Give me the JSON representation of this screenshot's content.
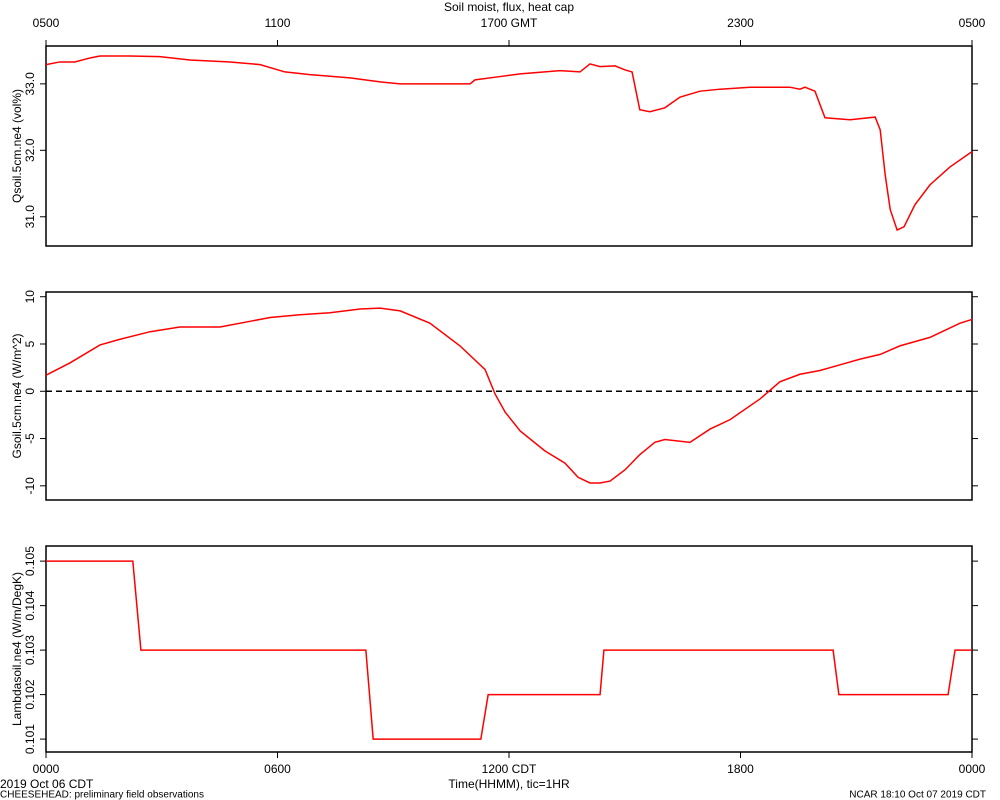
{
  "title": "Soil moist, flux, heat cap",
  "xlabel": "Time(HHMM), tic=1HR",
  "date_label": "2019 Oct 06 CDT",
  "project_label": "CHEESEHEAD: preliminary field observations",
  "credit_label": "NCAR 18:10 Oct 07 2019 CDT",
  "chart_data": [
    {
      "type": "line",
      "ylabel": "Qsoil.5cm.ne4 (vol%)",
      "color": "#ff0000",
      "x": [
        0,
        0.36,
        0.75,
        1.14,
        1.4,
        1.79,
        2.18,
        2.95,
        3.73,
        4.77,
        5.55,
        6.19,
        6.84,
        7.88,
        8.66,
        9.18,
        9.95,
        10.99,
        11.12,
        11.77,
        12.29,
        12.93,
        13.32,
        13.84,
        14.1,
        14.36,
        14.75,
        15.01,
        15.19,
        15.39,
        15.65,
        16.04,
        16.43,
        16.95,
        17.47,
        18.25,
        19.28,
        19.54,
        19.67,
        19.93,
        20.19,
        20.84,
        21.49,
        21.62,
        21.75,
        21.88,
        22.06,
        22.24,
        22.52,
        22.91,
        23.43,
        24
      ],
      "values": [
        33.29,
        33.33,
        33.33,
        33.39,
        33.42,
        33.42,
        33.42,
        33.41,
        33.36,
        33.33,
        33.29,
        33.18,
        33.14,
        33.09,
        33.03,
        33.0,
        33.0,
        33.0,
        33.06,
        33.11,
        33.15,
        33.18,
        33.2,
        33.18,
        33.3,
        33.26,
        33.27,
        33.21,
        33.18,
        32.61,
        32.58,
        32.64,
        32.8,
        32.89,
        32.92,
        32.95,
        32.95,
        32.92,
        32.95,
        32.89,
        32.49,
        32.46,
        32.5,
        32.31,
        31.63,
        31.11,
        30.8,
        30.85,
        31.18,
        31.48,
        31.75,
        31.98
      ],
      "xlim": [
        0,
        24
      ],
      "x2ticks": [
        {
          "value": 0,
          "label": "0500"
        },
        {
          "value": 6,
          "label": "1100"
        },
        {
          "value": 12,
          "label": "1700 GMT"
        },
        {
          "value": 18,
          "label": "2300"
        },
        {
          "value": 24,
          "label": "0500"
        }
      ],
      "ylim": [
        30.56,
        33.57
      ],
      "yticks": [
        {
          "value": 31,
          "label": "31.0"
        },
        {
          "value": 32,
          "label": "32.0"
        },
        {
          "value": 33,
          "label": "33.0"
        }
      ]
    },
    {
      "type": "line",
      "ylabel": "Gsoil.5cm.ne4 (W/m^2)",
      "color": "#ff0000",
      "x": [
        0,
        0.62,
        1.4,
        1.92,
        2.7,
        3.47,
        4.51,
        5.29,
        5.81,
        6.58,
        7.36,
        8.14,
        8.66,
        9.18,
        9.95,
        10.73,
        11.38,
        11.64,
        11.9,
        12.29,
        12.93,
        13.45,
        13.79,
        14.1,
        14.36,
        14.62,
        15.01,
        15.39,
        15.78,
        16.04,
        16.69,
        17.21,
        17.73,
        18.51,
        19.02,
        19.54,
        20.06,
        20.58,
        21.1,
        21.62,
        22.13,
        22.91,
        23.69,
        24
      ],
      "values": [
        1.7,
        3.0,
        4.9,
        5.5,
        6.3,
        6.8,
        6.8,
        7.4,
        7.8,
        8.1,
        8.3,
        8.7,
        8.8,
        8.5,
        7.2,
        4.8,
        2.3,
        -0.3,
        -2.2,
        -4.2,
        -6.3,
        -7.6,
        -9.1,
        -9.7,
        -9.7,
        -9.5,
        -8.3,
        -6.7,
        -5.4,
        -5.1,
        -5.4,
        -4.0,
        -3.0,
        -0.8,
        1.0,
        1.8,
        2.2,
        2.8,
        3.4,
        3.9,
        4.8,
        5.7,
        7.2,
        7.6
      ],
      "xlim": [
        0,
        24
      ],
      "ylim": [
        -11.5,
        10.5
      ],
      "yticks": [
        -10,
        -5,
        0,
        5,
        10
      ],
      "reference_line": 0
    },
    {
      "type": "line",
      "ylabel": "Lambdasoil.ne4 (W/m/DegK)",
      "color": "#ff0000",
      "x": [
        0,
        2.25,
        2.46,
        8.29,
        8.48,
        11.27,
        11.46,
        14.36,
        14.46,
        20.4,
        20.55,
        23.38,
        23.56,
        24
      ],
      "values": [
        0.105,
        0.105,
        0.103,
        0.103,
        0.101,
        0.101,
        0.102,
        0.102,
        0.103,
        0.103,
        0.102,
        0.102,
        0.103,
        0.103
      ],
      "xlim": [
        0,
        24
      ],
      "xticks": [
        {
          "value": 0,
          "label": "0000"
        },
        {
          "value": 6,
          "label": "0600"
        },
        {
          "value": 12,
          "label": "1200 CDT"
        },
        {
          "value": 18,
          "label": "1800"
        },
        {
          "value": 24,
          "label": "0000"
        }
      ],
      "ylim": [
        0.10071,
        0.10534
      ],
      "yticks": [
        0.101,
        0.102,
        0.103,
        0.104,
        0.105
      ]
    }
  ]
}
